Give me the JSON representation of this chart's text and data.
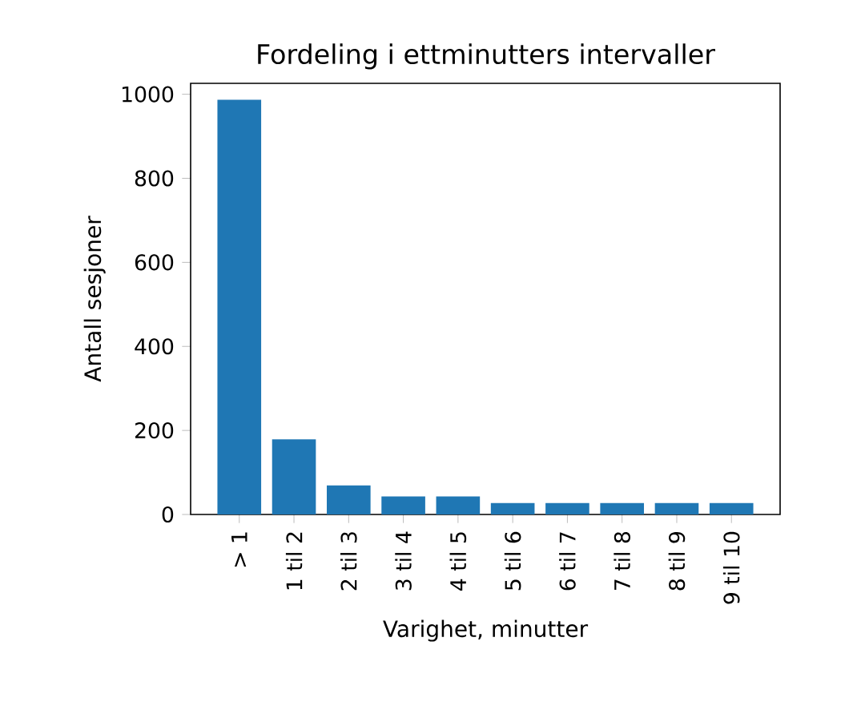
{
  "chart_data": {
    "type": "bar",
    "title": "Fordeling i ettminutters intervaller",
    "xlabel": "Varighet, minutter",
    "ylabel": "Antall sesjoner",
    "categories": [
      "> 1",
      "1 til 2",
      "2 til 3",
      "3 til 4",
      "4 til 5",
      "5 til 6",
      "6 til 7",
      "7 til 8",
      "8 til 9",
      "9 til 10"
    ],
    "values": [
      987,
      179,
      69,
      43,
      43,
      27,
      27,
      27,
      27,
      27
    ],
    "color": "#1f77b4",
    "ylim": [
      0,
      1026
    ],
    "yticks": [
      0,
      200,
      400,
      600,
      800,
      1000
    ],
    "grid": false
  }
}
